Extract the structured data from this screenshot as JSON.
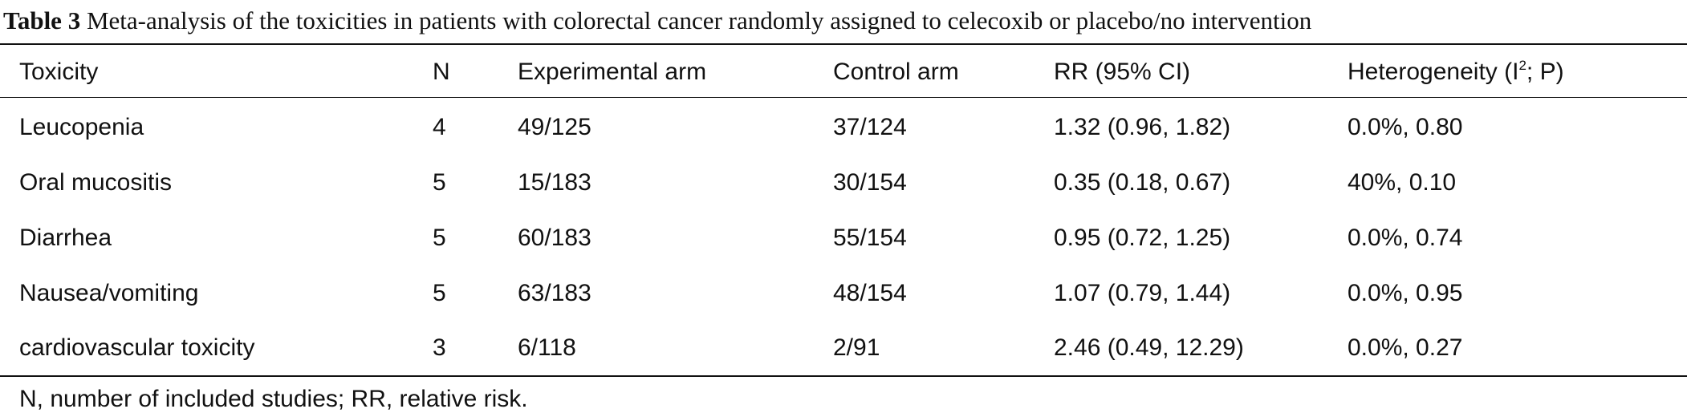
{
  "caption": {
    "label": "Table 3",
    "text": "Meta-analysis of the toxicities in patients with colorectal cancer randomly assigned to celecoxib or placebo/no intervention"
  },
  "header": {
    "toxicity": "Toxicity",
    "n": "N",
    "experimental": "Experimental arm",
    "control": "Control arm",
    "rr": "RR (95% CI)",
    "heterogeneity_pre": "Heterogeneity (I",
    "heterogeneity_sup": "2",
    "heterogeneity_post": "; P)"
  },
  "rows": [
    {
      "toxicity": "Leucopenia",
      "n": "4",
      "experimental": "49/125",
      "control": "37/124",
      "rr": "1.32 (0.96, 1.82)",
      "heterogeneity": "0.0%, 0.80"
    },
    {
      "toxicity": "Oral mucositis",
      "n": "5",
      "experimental": "15/183",
      "control": "30/154",
      "rr": "0.35 (0.18, 0.67)",
      "heterogeneity": "40%, 0.10"
    },
    {
      "toxicity": "Diarrhea",
      "n": "5",
      "experimental": "60/183",
      "control": "55/154",
      "rr": "0.95 (0.72, 1.25)",
      "heterogeneity": "0.0%, 0.74"
    },
    {
      "toxicity": "Nausea/vomiting",
      "n": "5",
      "experimental": "63/183",
      "control": "48/154",
      "rr": "1.07 (0.79, 1.44)",
      "heterogeneity": "0.0%, 0.95"
    },
    {
      "toxicity": "cardiovascular toxicity",
      "n": "3",
      "experimental": "6/118",
      "control": "2/91",
      "rr": "2.46 (0.49, 12.29)",
      "heterogeneity": "0.0%, 0.27"
    }
  ],
  "footnote": "N, number of included studies; RR, relative risk."
}
